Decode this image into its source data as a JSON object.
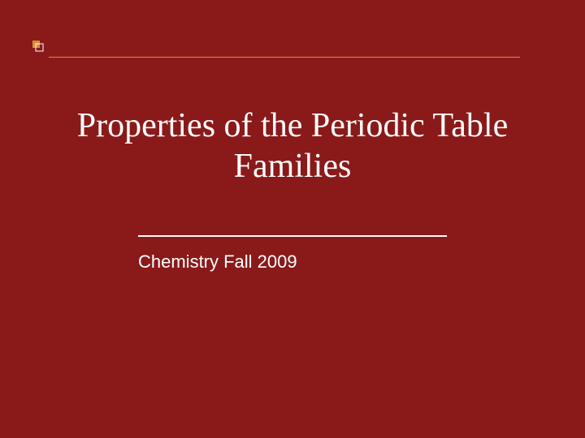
{
  "slide": {
    "background_color": "#8a1a1a",
    "title": "Properties of the Periodic Table Families",
    "title_fontsize": 42,
    "title_color": "#ffffff",
    "subtitle": "Chemistry Fall 2009",
    "subtitle_fontsize": 22,
    "subtitle_color": "#ffffff",
    "accent_color": "#d98f3a",
    "top_rule_width": 580,
    "divider_width": 380,
    "divider_color": "#ffffff",
    "corner_square_size": 9,
    "corner_stroke_color": "#ffffff"
  }
}
